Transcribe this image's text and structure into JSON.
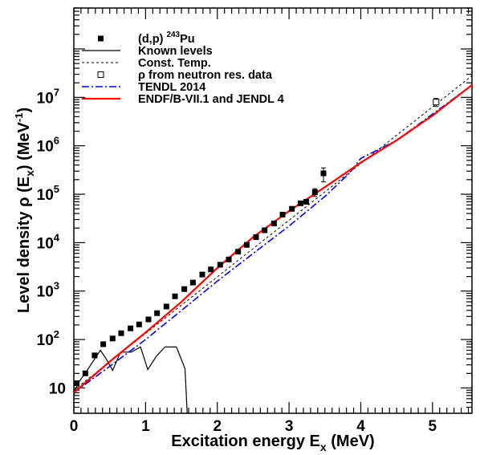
{
  "chart_data": {
    "type": "scatter",
    "xlabel": "Excitation energy E",
    "xlabel_sub": "x",
    "xlabel_unit": " (MeV)",
    "ylabel": "Level density  ρ (E",
    "ylabel_sub": "x",
    "ylabel_mid": ") (MeV",
    "ylabel_sup": "-1",
    "ylabel_end": ")",
    "x_scale": "linear",
    "y_scale": "log",
    "xlim": [
      0,
      5.55
    ],
    "ylim": [
      3,
      700000000
    ],
    "x_ticks": [
      "0",
      "1",
      "2",
      "3",
      "4",
      "5"
    ],
    "y_ticks": [
      {
        "value": 10,
        "label": "10"
      },
      {
        "value": 100,
        "label": "10",
        "exp": "2"
      },
      {
        "value": 1000,
        "label": "10",
        "exp": "3"
      },
      {
        "value": 10000,
        "label": "10",
        "exp": "4"
      },
      {
        "value": 100000,
        "label": "10",
        "exp": "5"
      },
      {
        "value": 1000000,
        "label": "10",
        "exp": "6"
      },
      {
        "value": 10000000,
        "label": "10",
        "exp": "7"
      }
    ],
    "grid": false,
    "legend_position": "top-left",
    "legend": [
      {
        "label": "(d,p) ",
        "sup": "243",
        "tail": "Pu",
        "symbol": "filled-square"
      },
      {
        "label": "Known levels",
        "symbol": "solid-black"
      },
      {
        "label": "Const. Temp.",
        "symbol": "dashed-black"
      },
      {
        "label": "ρ from neutron res. data",
        "symbol": "open-square"
      },
      {
        "label": "TENDL 2014",
        "symbol": "dashdot-blue"
      },
      {
        "label": "ENDF/B-VII.1 and JENDL 4",
        "symbol": "solid-red"
      }
    ],
    "colors": {
      "tendl": "#0000dd",
      "endf": "#ff0000",
      "data": "#000000"
    },
    "series": [
      {
        "name": "(d,p) 243Pu",
        "style": "filled-square",
        "points": [
          [
            0.04,
            12.5
          ],
          [
            0.16,
            20
          ],
          [
            0.29,
            47
          ],
          [
            0.41,
            80
          ],
          [
            0.54,
            105
          ],
          [
            0.66,
            135
          ],
          [
            0.79,
            170
          ],
          [
            0.91,
            205
          ],
          [
            1.04,
            260
          ],
          [
            1.16,
            350
          ],
          [
            1.29,
            480
          ],
          [
            1.41,
            780
          ],
          [
            1.54,
            1100
          ],
          [
            1.66,
            1500
          ],
          [
            1.79,
            2200
          ],
          [
            1.91,
            2800
          ],
          [
            2.04,
            3500
          ],
          [
            2.16,
            4500
          ],
          [
            2.29,
            6500
          ],
          [
            2.41,
            9000
          ],
          [
            2.54,
            13000
          ],
          [
            2.66,
            18000
          ],
          [
            2.79,
            25000
          ],
          [
            2.91,
            38000
          ],
          [
            3.04,
            50000
          ],
          [
            3.16,
            65000
          ],
          [
            3.24,
            70000
          ],
          [
            3.36,
            110000
          ],
          [
            3.48,
            270000
          ]
        ]
      },
      {
        "name": "Known levels",
        "style": "solid-black",
        "points": [
          [
            0,
            7
          ],
          [
            0.05,
            12
          ],
          [
            0.2,
            25
          ],
          [
            0.37,
            60
          ],
          [
            0.45,
            40
          ],
          [
            0.54,
            23
          ],
          [
            0.65,
            55
          ],
          [
            0.8,
            55
          ],
          [
            0.93,
            70
          ],
          [
            1.03,
            24
          ],
          [
            1.15,
            45
          ],
          [
            1.27,
            70
          ],
          [
            1.43,
            70
          ],
          [
            1.55,
            25
          ],
          [
            1.58,
            3
          ]
        ]
      },
      {
        "name": "Const. Temp.",
        "style": "dashed-black",
        "points": [
          [
            0,
            9
          ],
          [
            5.55,
            28000000
          ]
        ]
      },
      {
        "name": "ρ from neutron res. data",
        "style": "open-square",
        "points": [
          [
            5.05,
            8000000
          ]
        ]
      },
      {
        "name": "TENDL 2014",
        "style": "dashdot-blue",
        "points": [
          [
            0,
            8
          ],
          [
            0.5,
            28
          ],
          [
            1.0,
            100
          ],
          [
            1.5,
            400
          ],
          [
            2.0,
            1600
          ],
          [
            2.5,
            6000
          ],
          [
            3.0,
            22000
          ],
          [
            3.5,
            90000
          ],
          [
            3.85,
            280000
          ],
          [
            4.0,
            550000
          ],
          [
            4.5,
            1300000
          ],
          [
            5.0,
            4500000
          ],
          [
            5.55,
            18000000
          ]
        ]
      },
      {
        "name": "ENDF/B-VII.1 and JENDL 4",
        "style": "solid-red",
        "points": [
          [
            0,
            8
          ],
          [
            0.5,
            35
          ],
          [
            1.0,
            140
          ],
          [
            1.5,
            600
          ],
          [
            2.0,
            3000
          ],
          [
            2.5,
            13000
          ],
          [
            3.0,
            45000
          ],
          [
            3.5,
            140000
          ],
          [
            4.0,
            450000
          ],
          [
            4.5,
            1300000
          ],
          [
            5.0,
            4200000
          ],
          [
            5.55,
            18000000
          ]
        ]
      }
    ],
    "error_bars": [
      {
        "x": 3.48,
        "low": 180000,
        "high": 350000
      },
      {
        "x": 3.36,
        "low": 90000,
        "high": 130000
      },
      {
        "x": 5.05,
        "low": 6500000,
        "high": 9500000
      }
    ]
  }
}
